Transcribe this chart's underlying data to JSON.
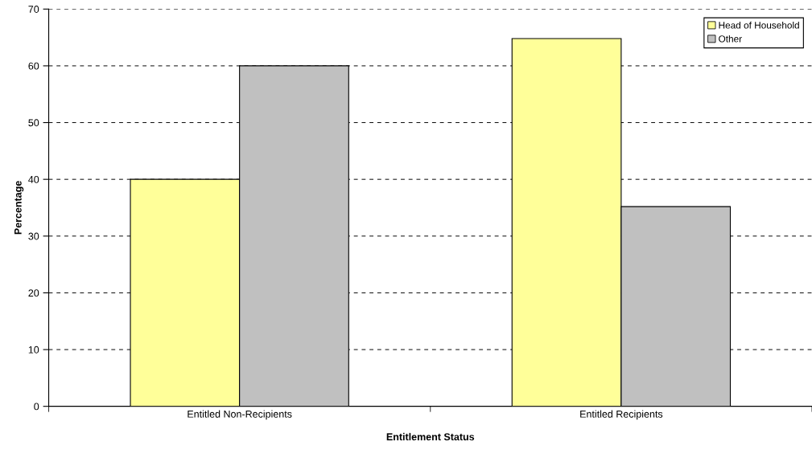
{
  "chart_data": {
    "type": "bar",
    "xlabel": "Entitlement Status",
    "ylabel": "Percentage",
    "categories": [
      "Entitled Non-Recipients",
      "Entitled Recipients"
    ],
    "series": [
      {
        "name": "Head of Household",
        "color": "#ffff99",
        "values": [
          40.0,
          64.8
        ]
      },
      {
        "name": "Other",
        "color": "#c0c0c0",
        "values": [
          60.0,
          35.2
        ]
      }
    ],
    "ylim": [
      0,
      70
    ],
    "yticks": [
      0,
      10,
      20,
      30,
      40,
      50,
      60,
      70
    ],
    "grid": "y",
    "legend": "top right"
  }
}
